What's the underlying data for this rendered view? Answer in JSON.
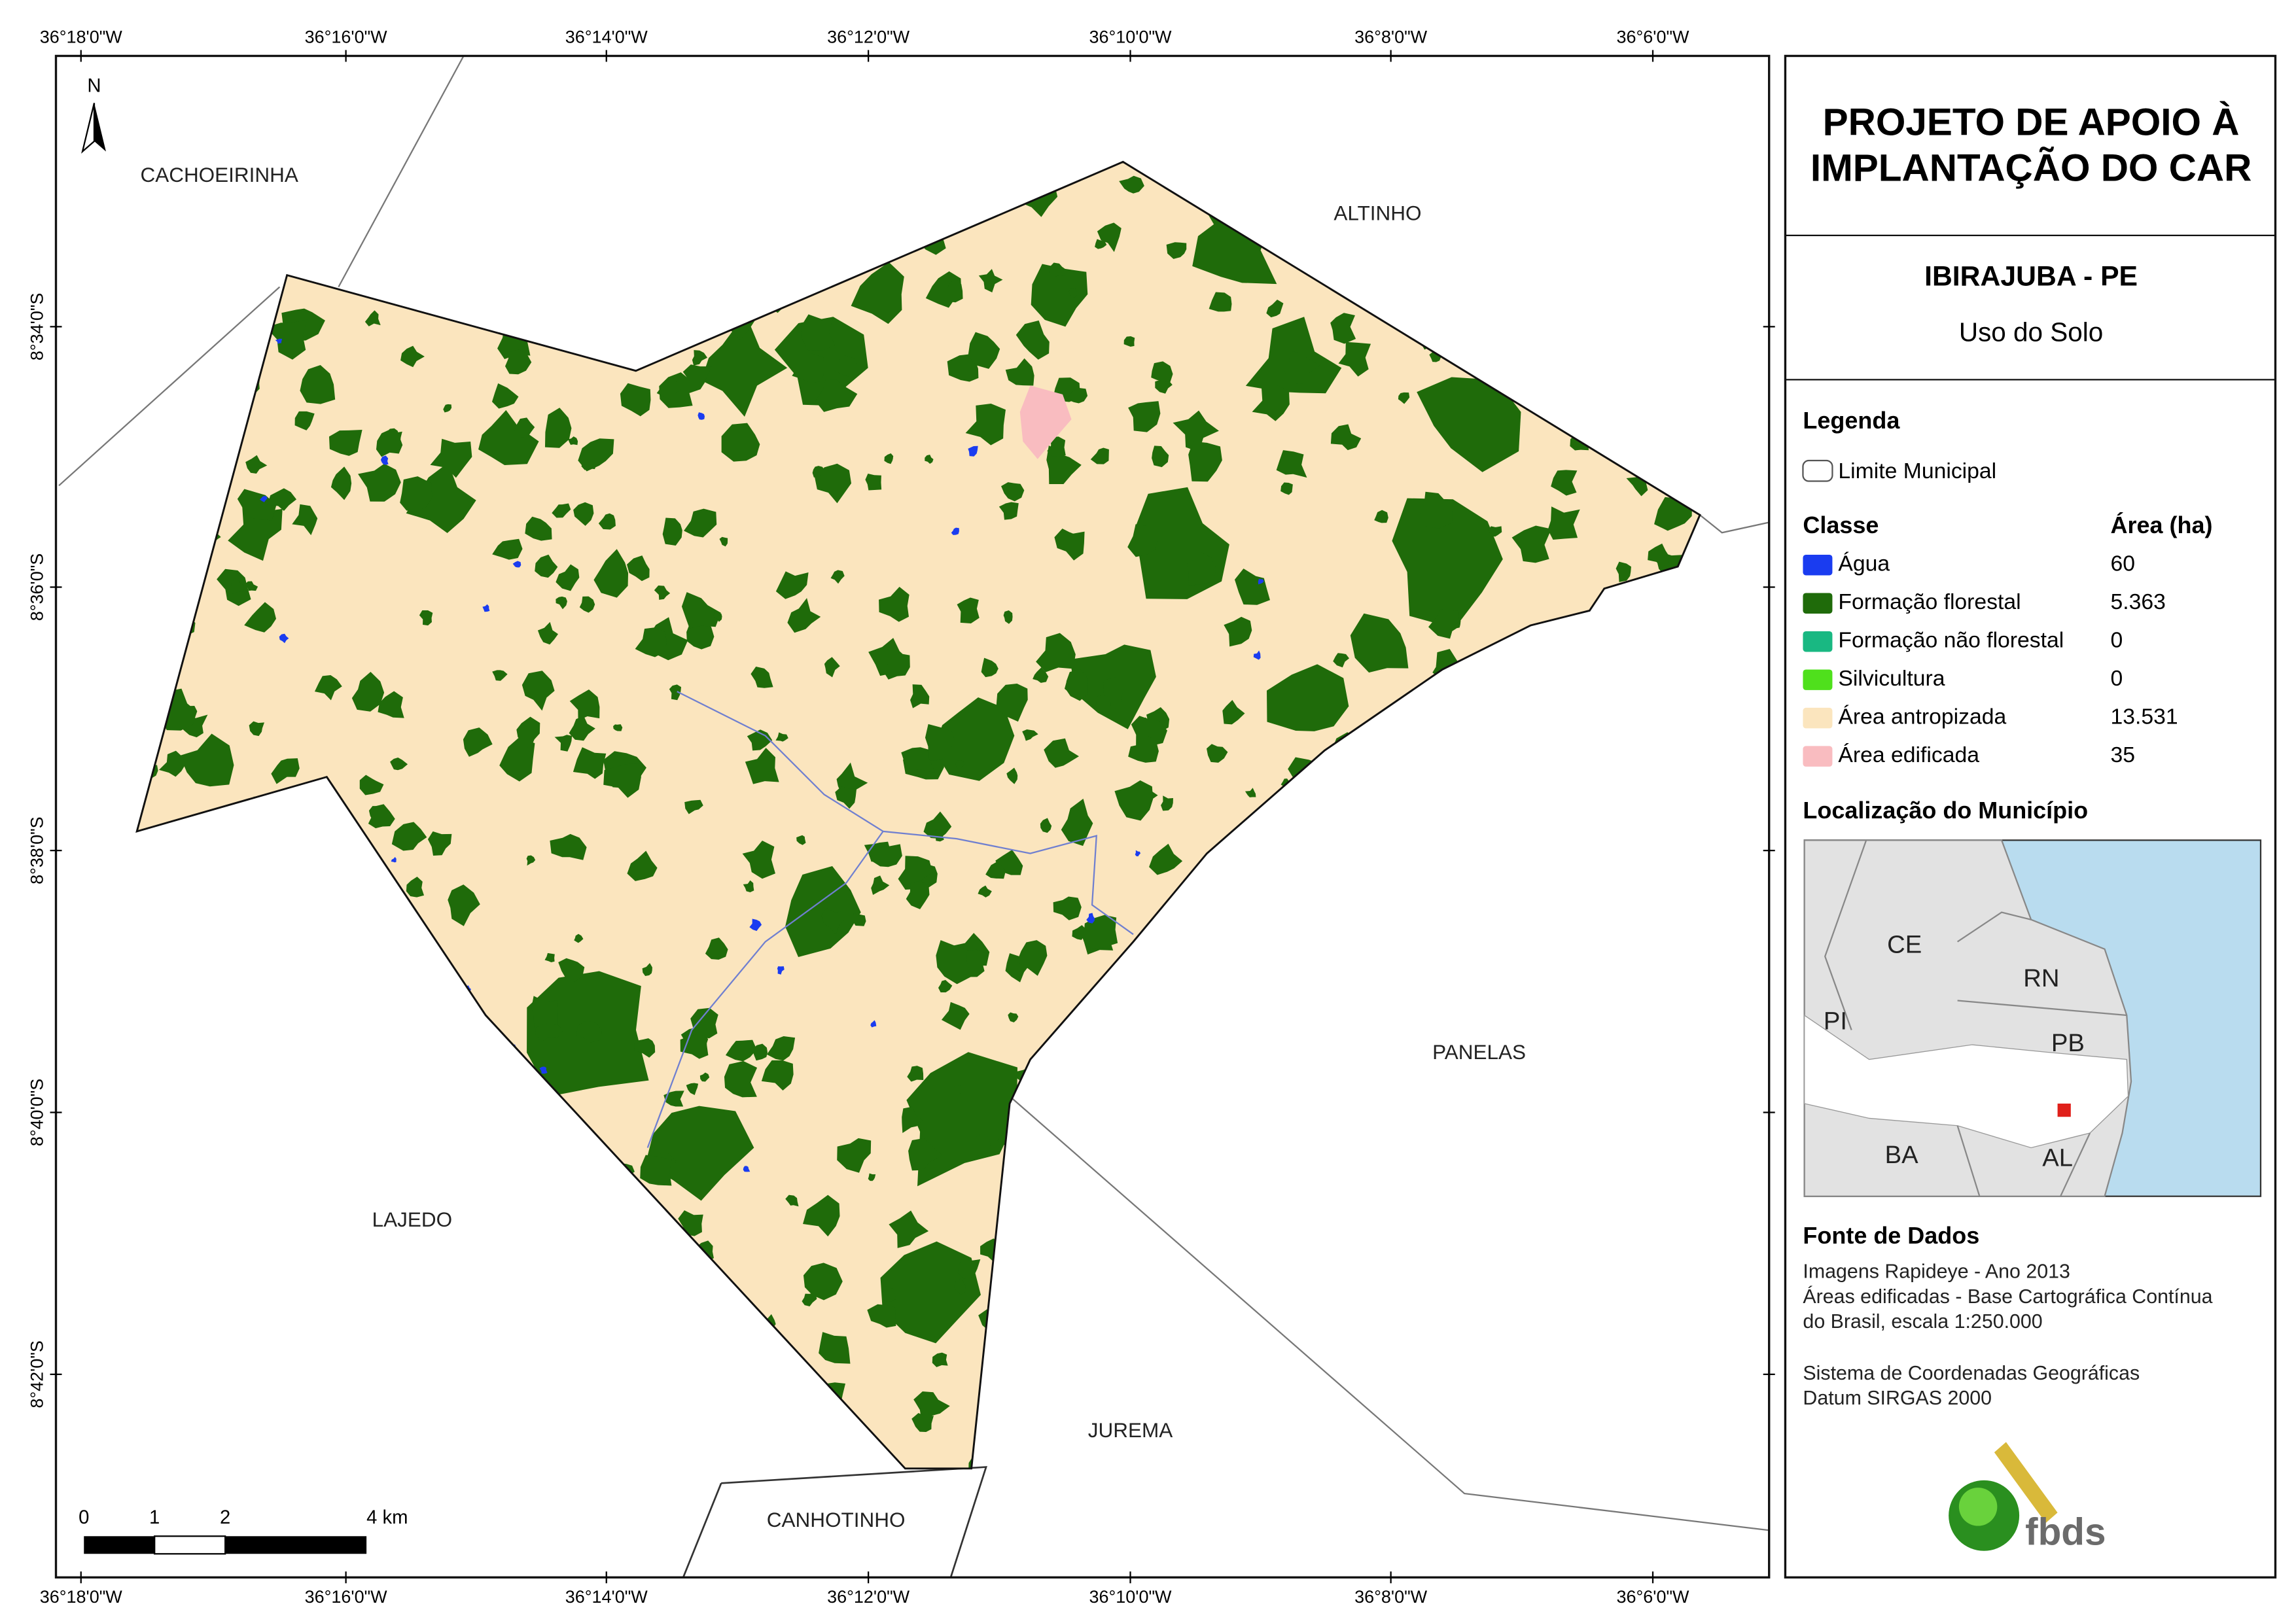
{
  "map": {
    "x_labels": [
      "36°18'0\"W",
      "36°16'0\"W",
      "36°14'0\"W",
      "36°12'0\"W",
      "36°10'0\"W",
      "36°8'0\"W",
      "36°6'0\"W"
    ],
    "y_labels": [
      "8°34'0\"S",
      "8°36'0\"S",
      "8°38'0\"S",
      "8°40'0\"S",
      "8°42'0\"S"
    ],
    "north": "N",
    "neighbors": [
      "CACHOEIRINHA",
      "ALTINHO",
      "PANELAS",
      "LAJEDO",
      "JUREMA",
      "CANHOTINHO"
    ],
    "scale_labels": [
      "0",
      "1",
      "2",
      "4 km"
    ]
  },
  "panel": {
    "title": [
      "PROJETO DE APOIO À",
      "IMPLANTAÇÃO DO CAR"
    ],
    "municipality": "IBIRAJUBA - PE",
    "subtitle": "Uso do Solo",
    "legend_heading": "Legenda",
    "boundary": "Limite Municipal",
    "class_heading": "Classe",
    "area_heading": "Área (ha)",
    "classes": [
      {
        "name": "Água",
        "area": "60",
        "color": "#1a3cf0"
      },
      {
        "name": "Formação florestal",
        "area": "5.363",
        "color": "#1f6b0a"
      },
      {
        "name": "Formação não florestal",
        "area": "0",
        "color": "#19b882"
      },
      {
        "name": "Silvicultura",
        "area": "0",
        "color": "#4fe01c"
      },
      {
        "name": "Área antropizada",
        "area": "13.531",
        "color": "#fbe5be"
      },
      {
        "name": "Área edificada",
        "area": "35",
        "color": "#f9bcc0"
      }
    ],
    "location_heading": "Localização do Município",
    "inset_labels": [
      "CE",
      "RN",
      "PI",
      "PB",
      "BA",
      "AL"
    ],
    "source_heading": "Fonte de Dados",
    "source_lines": [
      "Imagens Rapideye - Ano 2013",
      "Áreas edificadas - Base Cartográfica Contínua",
      "do Brasil, escala 1:250.000",
      "Sistema de Coordenadas Geográficas",
      "Datum SIRGAS 2000"
    ],
    "logo": "fbds"
  }
}
